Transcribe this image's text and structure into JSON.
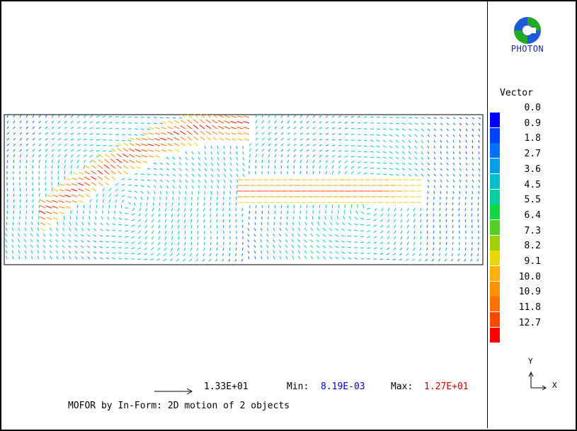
{
  "chart_data": {
    "type": "vector-field",
    "legend": {
      "title": "Vector",
      "labels": [
        "0.0",
        "0.9",
        "1.8",
        "2.7",
        "3.6",
        "4.5",
        "5.5",
        "6.4",
        "7.3",
        "8.2",
        "9.1",
        "10.0",
        "10.9",
        "11.8",
        "12.7"
      ],
      "colors": [
        "#0000ff",
        "#0040ff",
        "#0070ff",
        "#00a0e8",
        "#00c0d0",
        "#00d0a0",
        "#10d840",
        "#50d020",
        "#a0d000",
        "#e8d800",
        "#ffb000",
        "#ff9000",
        "#ff7000",
        "#ff4800",
        "#ff0000"
      ]
    },
    "reference_vector": "1.33E+01",
    "min_label": "Min:",
    "min_value": "8.19E-03",
    "max_label": "Max:",
    "max_value": "1.27E+01"
  },
  "brand": {
    "name": "PHOTON"
  },
  "caption": "MOFOR by In-Form: 2D motion of 2 objects",
  "axes": {
    "y": "Y",
    "x": "X"
  }
}
